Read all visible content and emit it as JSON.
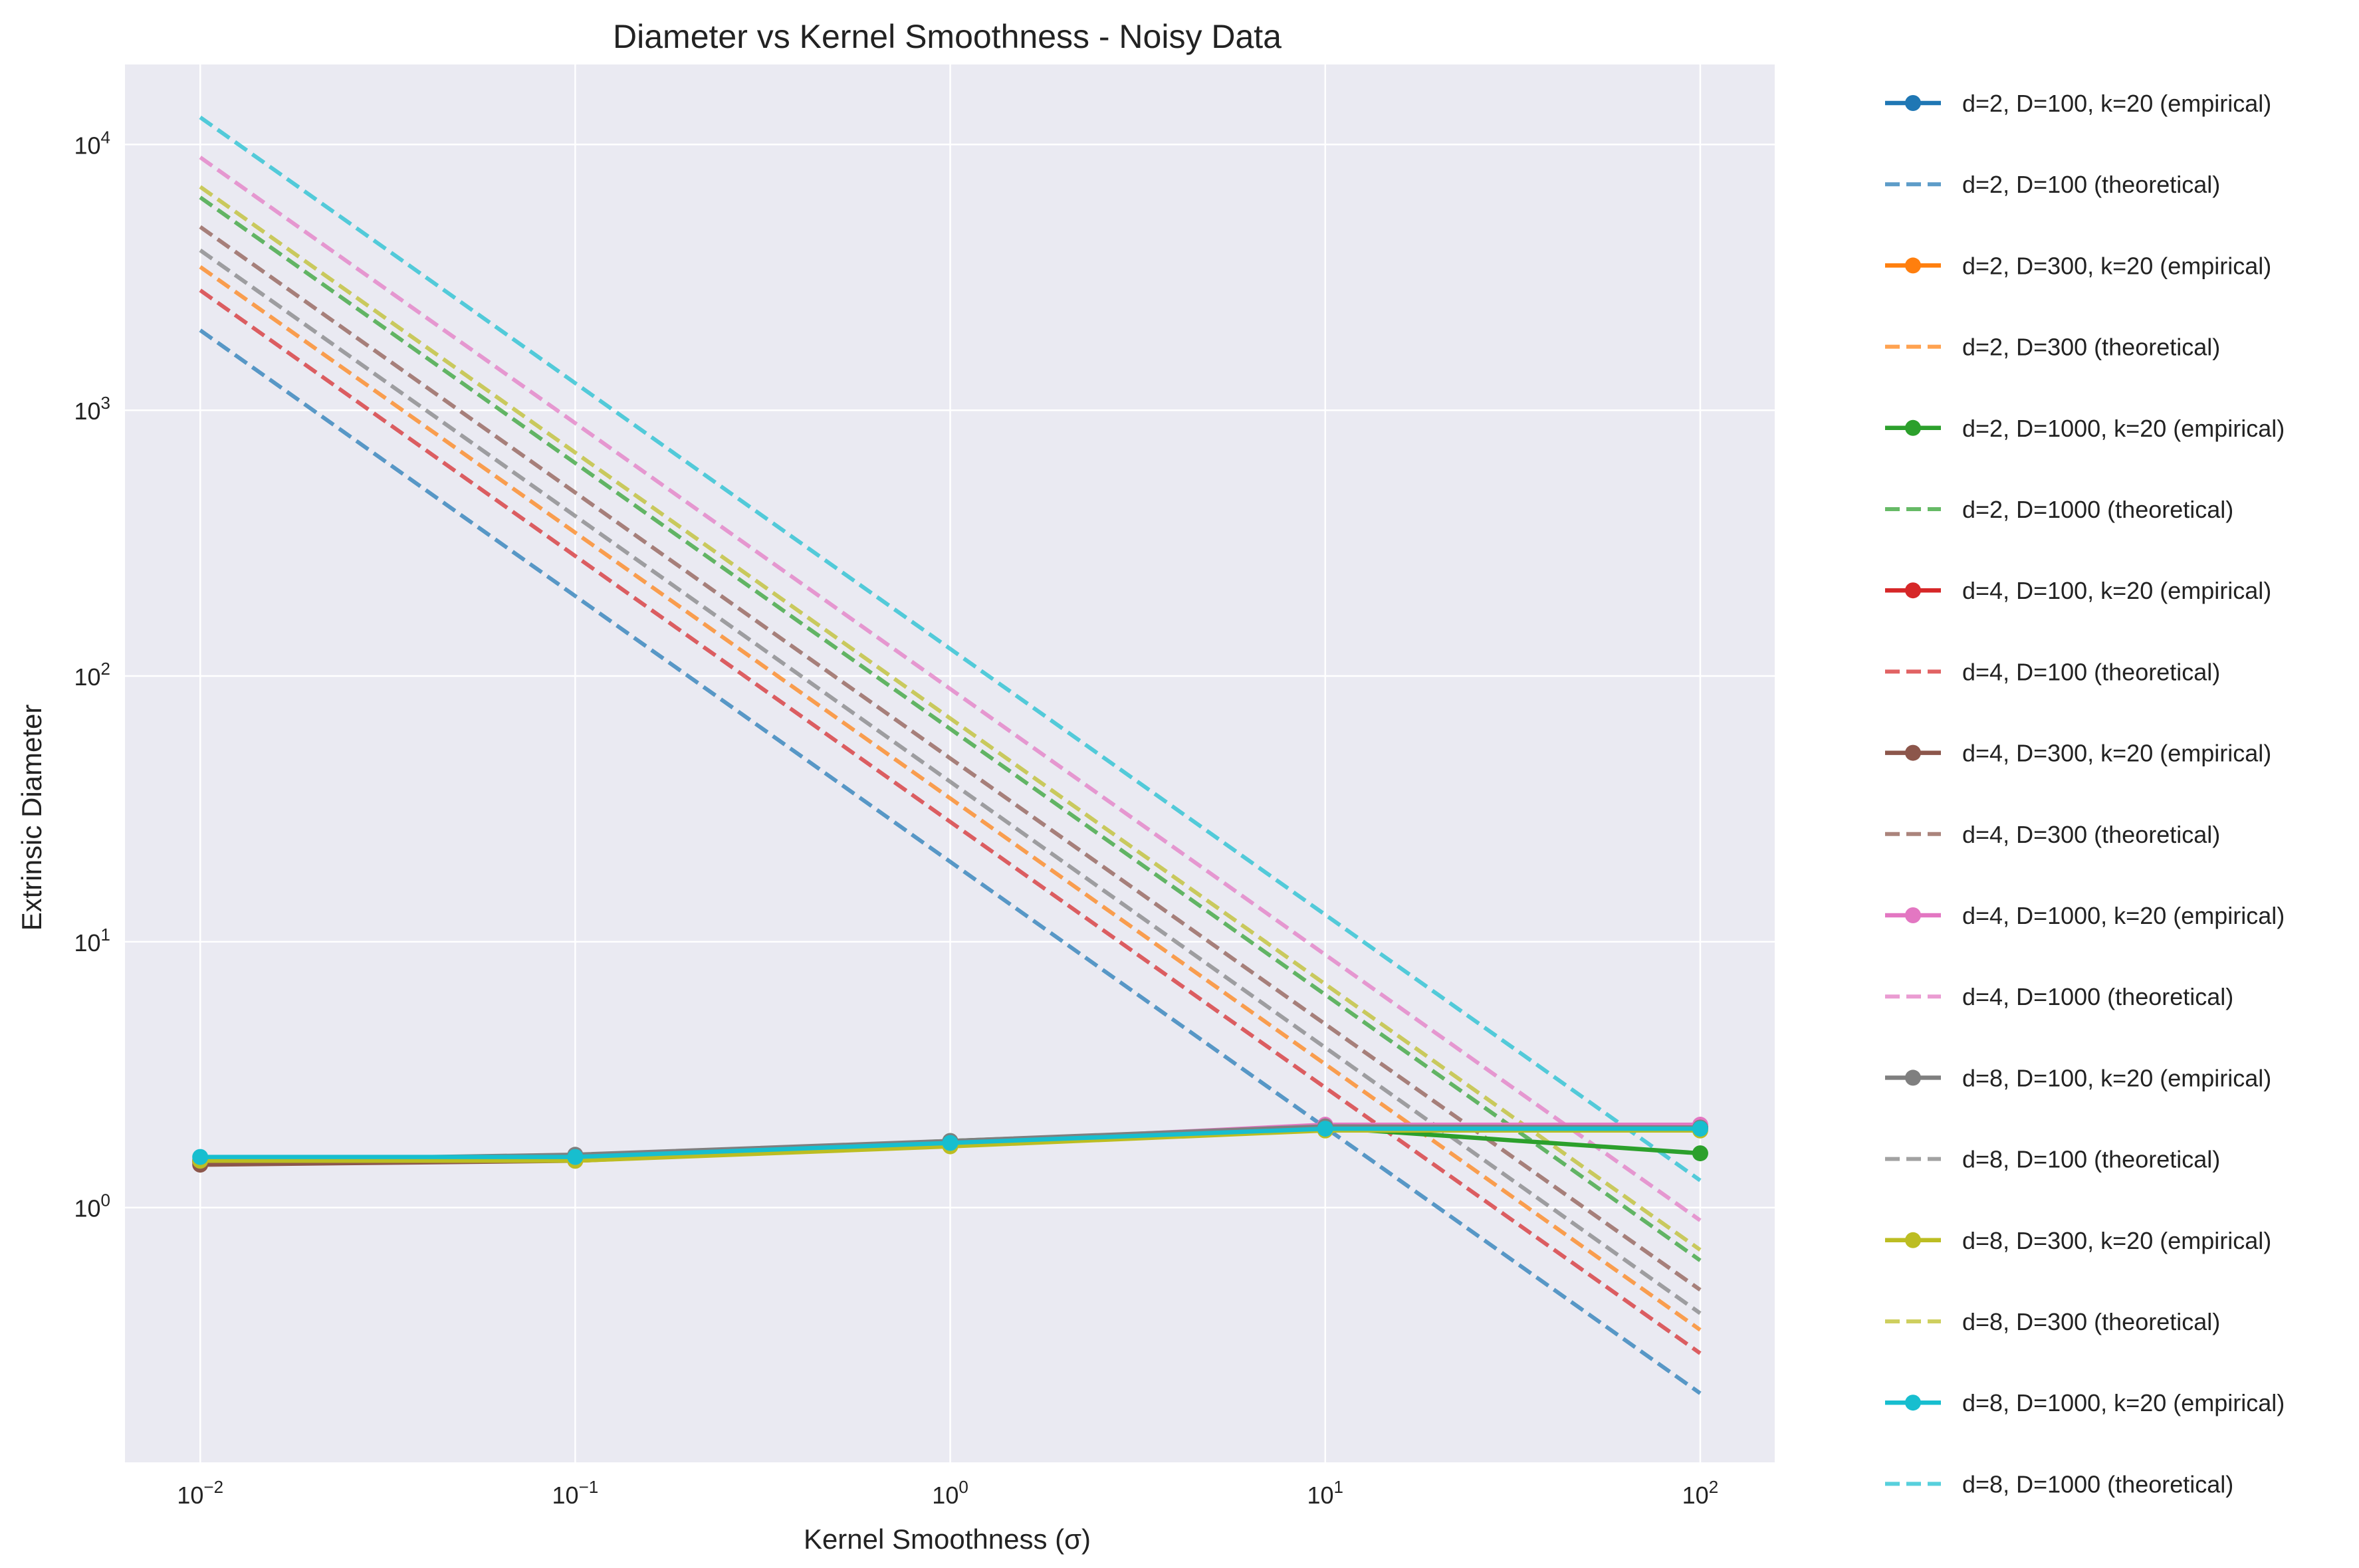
{
  "chart_data": {
    "type": "line",
    "title": "Diameter vs Kernel Smoothness - Noisy Data",
    "xlabel": "Kernel Smoothness (σ)",
    "ylabel": "Extrinsic Diameter",
    "x_scale": "log",
    "y_scale": "log",
    "xlim": [
      0.0063,
      158
    ],
    "ylim": [
      0.11,
      20000
    ],
    "grid": true,
    "legend_position": "outside-right",
    "x": [
      0.01,
      0.1,
      1,
      10,
      100
    ],
    "x_ticks": [
      {
        "value": 0.01,
        "base": "10",
        "exp": "−2"
      },
      {
        "value": 0.1,
        "base": "10",
        "exp": "−1"
      },
      {
        "value": 1,
        "base": "10",
        "exp": "0"
      },
      {
        "value": 10,
        "base": "10",
        "exp": "1"
      },
      {
        "value": 100,
        "base": "10",
        "exp": "2"
      }
    ],
    "y_ticks": [
      {
        "value": 1,
        "base": "10",
        "exp": "0"
      },
      {
        "value": 10,
        "base": "10",
        "exp": "1"
      },
      {
        "value": 100,
        "base": "10",
        "exp": "2"
      },
      {
        "value": 1000,
        "base": "10",
        "exp": "3"
      },
      {
        "value": 10000,
        "base": "10",
        "exp": "4"
      }
    ],
    "series": [
      {
        "name": "d=2, D=100, k=20 (empirical)",
        "kind": "empirical",
        "color": "#1f77b4",
        "values": [
          1.5,
          1.55,
          1.75,
          2.0,
          2.0
        ]
      },
      {
        "name": "d=2, D=100 (theoretical)",
        "kind": "theoretical",
        "color": "#1f77b4",
        "values": [
          2000,
          200,
          20,
          2,
          0.2
        ]
      },
      {
        "name": "d=2, D=300, k=20 (empirical)",
        "kind": "empirical",
        "color": "#ff7f0e",
        "values": [
          1.5,
          1.52,
          1.72,
          2.0,
          2.0
        ]
      },
      {
        "name": "d=2, D=300 (theoretical)",
        "kind": "theoretical",
        "color": "#ff7f0e",
        "values": [
          3464,
          346.4,
          34.64,
          3.464,
          0.3464
        ]
      },
      {
        "name": "d=2, D=1000, k=20 (empirical)",
        "kind": "empirical",
        "color": "#2ca02c",
        "values": [
          1.5,
          1.55,
          1.78,
          2.0,
          1.6
        ]
      },
      {
        "name": "d=2, D=1000 (theoretical)",
        "kind": "theoretical",
        "color": "#2ca02c",
        "values": [
          6325,
          632.5,
          63.25,
          6.325,
          0.6325
        ]
      },
      {
        "name": "d=4, D=100, k=20 (empirical)",
        "kind": "empirical",
        "color": "#d62728",
        "values": [
          1.48,
          1.52,
          1.72,
          2.0,
          2.0
        ]
      },
      {
        "name": "d=4, D=100 (theoretical)",
        "kind": "theoretical",
        "color": "#d62728",
        "values": [
          2828,
          282.8,
          28.28,
          2.828,
          0.2828
        ]
      },
      {
        "name": "d=4, D=300, k=20 (empirical)",
        "kind": "empirical",
        "color": "#8c564b",
        "values": [
          1.45,
          1.5,
          1.72,
          2.0,
          2.0
        ]
      },
      {
        "name": "d=4, D=300 (theoretical)",
        "kind": "theoretical",
        "color": "#8c564b",
        "values": [
          4899,
          489.9,
          48.99,
          4.899,
          0.4899
        ]
      },
      {
        "name": "d=4, D=1000, k=20 (empirical)",
        "kind": "empirical",
        "color": "#e377c2",
        "values": [
          1.52,
          1.55,
          1.75,
          2.05,
          2.05
        ]
      },
      {
        "name": "d=4, D=1000 (theoretical)",
        "kind": "theoretical",
        "color": "#e377c2",
        "values": [
          8944,
          894.4,
          89.44,
          8.944,
          0.8944
        ]
      },
      {
        "name": "d=8, D=100, k=20 (empirical)",
        "kind": "empirical",
        "color": "#7f7f7f",
        "values": [
          1.5,
          1.58,
          1.78,
          2.02,
          2.0
        ]
      },
      {
        "name": "d=8, D=100 (theoretical)",
        "kind": "theoretical",
        "color": "#7f7f7f",
        "values": [
          4000,
          400,
          40,
          4,
          0.4
        ]
      },
      {
        "name": "d=8, D=300, k=20 (empirical)",
        "kind": "empirical",
        "color": "#bcbd22",
        "values": [
          1.5,
          1.5,
          1.7,
          1.95,
          1.95
        ]
      },
      {
        "name": "d=8, D=300 (theoretical)",
        "kind": "theoretical",
        "color": "#bcbd22",
        "values": [
          6928,
          692.8,
          69.28,
          6.928,
          0.6928
        ]
      },
      {
        "name": "d=8, D=1000, k=20 (empirical)",
        "kind": "empirical",
        "color": "#17becf",
        "values": [
          1.55,
          1.55,
          1.75,
          1.98,
          1.98
        ]
      },
      {
        "name": "d=8, D=1000 (theoretical)",
        "kind": "theoretical",
        "color": "#17becf",
        "values": [
          12650,
          1265,
          126.5,
          12.65,
          1.265
        ]
      }
    ]
  }
}
